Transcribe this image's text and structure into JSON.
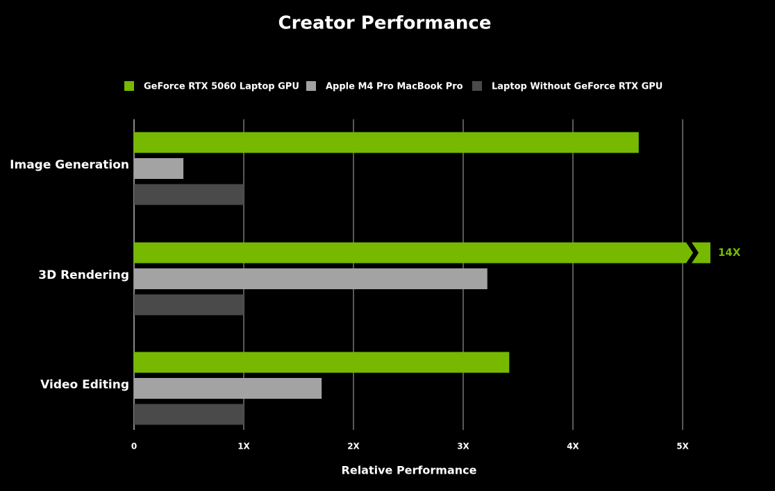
{
  "chart_data": {
    "type": "hbar",
    "title": "Creator Performance",
    "x_label": "Relative Performance",
    "categories": [
      "Image Generation",
      "3D Rendering",
      "Video Editing"
    ],
    "series": [
      {
        "name": "GeForce RTX 5060 Laptop GPU",
        "color": "#76b900",
        "values": [
          4.6,
          14,
          3.42
        ],
        "value_labels": [
          null,
          "14X",
          null
        ]
      },
      {
        "name": "Apple M4 Pro MacBook Pro",
        "color": "#a3a3a3",
        "values": [
          0.45,
          3.22,
          1.71
        ]
      },
      {
        "name": "Laptop Without GeForce RTX GPU",
        "color": "#4a4a4a",
        "values": [
          1,
          1,
          1
        ]
      }
    ],
    "xlim": [
      0,
      5
    ],
    "xticks": [
      0,
      {
        "value": 1,
        "label": "1X"
      },
      {
        "value": 2,
        "label": "2X"
      },
      {
        "value": 3,
        "label": "3X"
      },
      {
        "value": 4,
        "label": "4X"
      },
      {
        "value": 5,
        "label": "5X"
      }
    ],
    "grid": true
  }
}
